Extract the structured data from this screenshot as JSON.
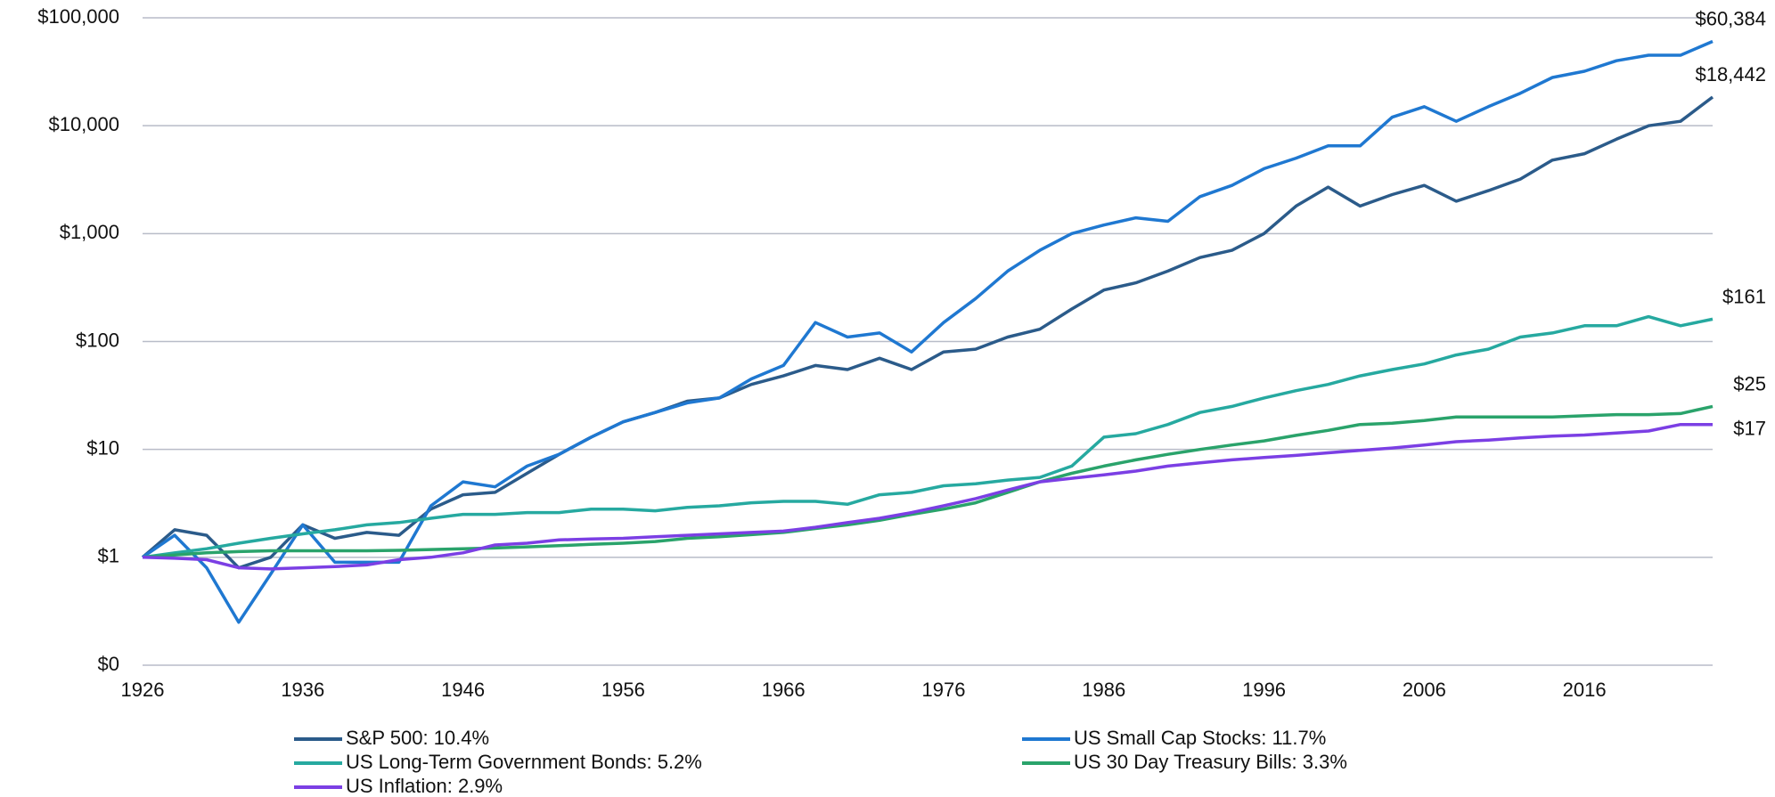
{
  "chart_data": {
    "type": "line",
    "log_scale": true,
    "grid": true,
    "x": [
      1926,
      1928,
      1930,
      1932,
      1934,
      1936,
      1938,
      1940,
      1942,
      1944,
      1946,
      1948,
      1950,
      1952,
      1954,
      1956,
      1958,
      1960,
      1962,
      1964,
      1966,
      1968,
      1970,
      1972,
      1974,
      1976,
      1978,
      1980,
      1982,
      1984,
      1986,
      1988,
      1990,
      1992,
      1994,
      1996,
      1998,
      2000,
      2002,
      2004,
      2006,
      2008,
      2010,
      2012,
      2014,
      2016,
      2018,
      2020,
      2022,
      2024
    ],
    "xlim": [
      1926,
      2024
    ],
    "xticks": [
      1926,
      1936,
      1946,
      1956,
      1966,
      1976,
      1986,
      1996,
      2006,
      2016
    ],
    "ylim": [
      0.1,
      100000
    ],
    "yticks": [
      {
        "value": 0.1,
        "label": "$0"
      },
      {
        "value": 1,
        "label": "$1"
      },
      {
        "value": 10,
        "label": "$10"
      },
      {
        "value": 100,
        "label": "$100"
      },
      {
        "value": 1000,
        "label": "$1,000"
      },
      {
        "value": 10000,
        "label": "$10,000"
      },
      {
        "value": 100000,
        "label": "$100,000"
      }
    ],
    "series": [
      {
        "name": "S&P 500: 10.4%",
        "color": "#2b5b8a",
        "end_label": "$18,442",
        "values": [
          1,
          1.8,
          1.6,
          0.8,
          1.0,
          2.0,
          1.5,
          1.7,
          1.6,
          2.8,
          3.8,
          4,
          6,
          9,
          13,
          18,
          22,
          28,
          30,
          40,
          48,
          60,
          55,
          70,
          55,
          80,
          85,
          110,
          130,
          200,
          300,
          350,
          450,
          600,
          700,
          1000,
          1800,
          2700,
          1800,
          2300,
          2800,
          2000,
          2500,
          3200,
          4800,
          5500,
          7500,
          10000,
          11000,
          18442
        ]
      },
      {
        "name": "US Small Cap Stocks: 11.7%",
        "color": "#1f78d1",
        "end_label": "$60,384",
        "values": [
          1,
          1.6,
          0.8,
          0.25,
          0.7,
          2.0,
          0.9,
          0.9,
          0.9,
          3,
          5,
          4.5,
          7,
          9,
          13,
          18,
          22,
          27,
          30,
          45,
          60,
          150,
          110,
          120,
          80,
          150,
          250,
          450,
          700,
          1000,
          1200,
          1400,
          1300,
          2200,
          2800,
          4000,
          5000,
          6500,
          6500,
          12000,
          15000,
          11000,
          15000,
          20000,
          28000,
          32000,
          40000,
          45000,
          45000,
          60384
        ]
      },
      {
        "name": "US Long-Term Government Bonds: 5.2%",
        "color": "#26a9a0",
        "end_label": "$161",
        "values": [
          1,
          1.1,
          1.2,
          1.35,
          1.5,
          1.65,
          1.8,
          2.0,
          2.1,
          2.3,
          2.5,
          2.5,
          2.6,
          2.6,
          2.8,
          2.8,
          2.7,
          2.9,
          3.0,
          3.2,
          3.3,
          3.3,
          3.1,
          3.8,
          4.0,
          4.6,
          4.8,
          5.2,
          5.5,
          7,
          13,
          14,
          17,
          22,
          25,
          30,
          35,
          40,
          48,
          55,
          62,
          75,
          85,
          110,
          120,
          140,
          140,
          170,
          140,
          161
        ]
      },
      {
        "name": "US 30 Day Treasury Bills: 3.3%",
        "color": "#2aa36b",
        "end_label": "$25",
        "values": [
          1,
          1.05,
          1.1,
          1.13,
          1.15,
          1.15,
          1.15,
          1.15,
          1.16,
          1.18,
          1.2,
          1.22,
          1.25,
          1.28,
          1.32,
          1.35,
          1.4,
          1.5,
          1.55,
          1.62,
          1.7,
          1.85,
          2.0,
          2.2,
          2.5,
          2.8,
          3.2,
          4,
          5,
          6,
          7,
          8,
          9,
          10,
          11,
          12,
          13.5,
          15,
          17,
          17.5,
          18.5,
          20,
          20,
          20,
          20,
          20.5,
          21,
          21,
          21.5,
          25
        ]
      },
      {
        "name": "US Inflation: 2.9%",
        "color": "#7b3fe4",
        "end_label": "$17",
        "values": [
          1,
          0.98,
          0.95,
          0.8,
          0.78,
          0.8,
          0.82,
          0.85,
          0.95,
          1.0,
          1.1,
          1.3,
          1.35,
          1.45,
          1.48,
          1.5,
          1.55,
          1.6,
          1.65,
          1.7,
          1.75,
          1.9,
          2.1,
          2.3,
          2.6,
          3.0,
          3.5,
          4.2,
          5,
          5.4,
          5.8,
          6.3,
          7,
          7.5,
          8,
          8.4,
          8.8,
          9.3,
          9.8,
          10.3,
          11,
          11.8,
          12.2,
          12.8,
          13.3,
          13.6,
          14.2,
          14.8,
          17,
          17
        ]
      }
    ]
  }
}
